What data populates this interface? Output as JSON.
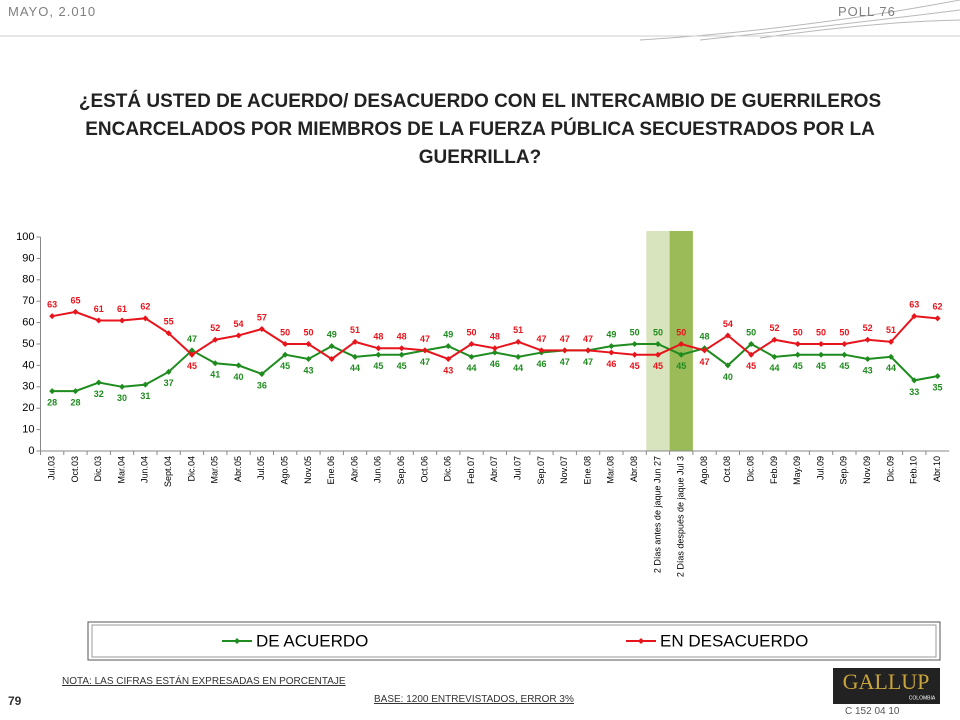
{
  "header": {
    "date": "MAYO, 2.010",
    "poll": "POLL 76"
  },
  "chart_data": {
    "type": "line",
    "title": "¿ESTÁ USTED DE ACUERDO/ DESACUERDO CON EL INTERCAMBIO DE GUERRILEROS ENCARCELADOS POR MIEMBROS DE LA FUERZA PÚBLICA SECUESTRADOS POR LA GUERRILLA?",
    "categories": [
      "Jul.03",
      "Oct.03",
      "Dic.03",
      "Mar.04",
      "Jun.04",
      "Sept.04",
      "Dic.04",
      "Mar.05",
      "Abr.05",
      "Jul.05",
      "Ago.05",
      "Nov.05",
      "Ene.06",
      "Abr.06",
      "Jun.06",
      "Sep.06",
      "Oct.06",
      "Dic.06",
      "Feb.07",
      "Abr.07",
      "Jul.07",
      "Sep.07",
      "Nov.07",
      "Ene.08",
      "Mar.08",
      "Abr.08",
      "2 Días antes de jaque Jun 27",
      "2 Días después de jaque Jul 3",
      "Ago.08",
      "Oct.08",
      "Dic.08",
      "Feb.09",
      "May.09",
      "Jul.09",
      "Sep.09",
      "Nov.09",
      "Dic.09",
      "Feb.10",
      "Abr.10"
    ],
    "series": [
      {
        "name": "DE ACUERDO",
        "color": "#1e8c1e",
        "values": [
          28,
          28,
          32,
          30,
          31,
          37,
          47,
          41,
          40,
          36,
          45,
          43,
          49,
          44,
          45,
          45,
          47,
          49,
          44,
          46,
          44,
          46,
          47,
          47,
          49,
          50,
          50,
          45,
          48,
          40,
          50,
          44,
          45,
          45,
          45,
          43,
          44,
          33,
          35
        ]
      },
      {
        "name": "EN DESACUERDO",
        "color": "#e8141c",
        "values": [
          63,
          65,
          61,
          61,
          62,
          55,
          45,
          52,
          54,
          57,
          50,
          50,
          43,
          51,
          48,
          48,
          47,
          43,
          50,
          48,
          51,
          47,
          47,
          47,
          46,
          45,
          45,
          50,
          47,
          54,
          45,
          52,
          50,
          50,
          50,
          52,
          51,
          63,
          62
        ],
        "value_labels": [
          "63",
          "65",
          "61",
          "61",
          "62",
          "55",
          "45",
          "52",
          "54",
          "57",
          "50",
          "50",
          null,
          "51",
          "48",
          "48",
          "47",
          "43",
          "50",
          "48",
          "51",
          "47",
          "47",
          "47",
          "46",
          "45",
          "45",
          "50",
          "47",
          "54",
          "45",
          "52",
          "50",
          "50",
          "50",
          "52",
          "51",
          "63",
          "62"
        ]
      }
    ],
    "highlights": [
      {
        "index": 26,
        "color": "#d7e4bd"
      },
      {
        "index": 27,
        "color": "#9bbb59"
      }
    ],
    "ylim": [
      0,
      100
    ],
    "yticks": [
      0,
      10,
      20,
      30,
      40,
      50,
      60,
      70,
      80,
      90,
      100
    ],
    "legend": "bottom"
  },
  "footer": {
    "note": "NOTA: LAS CIFRAS ESTÁN EXPRESADAS EN PORCENTAJE",
    "page": "79",
    "base": "BASE: 1200 ENTREVISTADOS, ERROR 3%",
    "logo": "GALLUP",
    "logo_sub": "COLOMBIA",
    "code": "C 152 04 10"
  }
}
